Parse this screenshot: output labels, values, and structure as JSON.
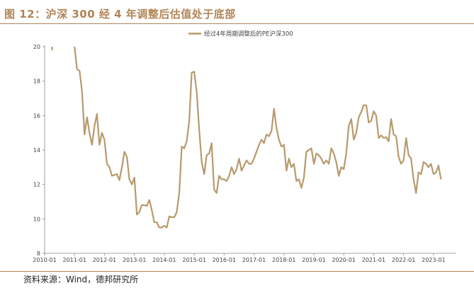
{
  "title": "图 12：沪深 300 经 4 年调整后估值处于底部",
  "source": "资料来源：Wind，德邦研究所",
  "colors": {
    "accent": "#b08457",
    "line": "#b79a6d"
  },
  "chart_data": {
    "type": "line",
    "title": "",
    "xlabel": "",
    "ylabel": "",
    "ylim": [
      8,
      20
    ],
    "yticks": [
      "8",
      "10",
      "12",
      "14",
      "16",
      "18",
      "20"
    ],
    "xticks": [
      "2010-01",
      "2011-01",
      "2012-01",
      "2013-01",
      "2014-01",
      "2015-01",
      "2016-01",
      "2017-01",
      "2018-01",
      "2019-01",
      "2020-01",
      "2021-01",
      "2022-01",
      "2023-01"
    ],
    "grid": false,
    "legend": "top-center",
    "series": [
      {
        "name": "经过4年周期调整后的PE沪深300",
        "points": [
          [
            "2010-04",
            19.8
          ],
          [
            "2010-04",
            20.0
          ],
          [
            "2011-01",
            20.0
          ],
          [
            "2011-02",
            18.7
          ],
          [
            "2011-03",
            18.6
          ],
          [
            "2011-04",
            17.4
          ],
          [
            "2011-05",
            14.9
          ],
          [
            "2011-06",
            15.9
          ],
          [
            "2011-07",
            15.0
          ],
          [
            "2011-08",
            14.3
          ],
          [
            "2011-09",
            15.4
          ],
          [
            "2011-10",
            16.1
          ],
          [
            "2011-11",
            14.3
          ],
          [
            "2011-12",
            15.0
          ],
          [
            "2012-01",
            14.6
          ],
          [
            "2012-02",
            13.2
          ],
          [
            "2012-03",
            13.0
          ],
          [
            "2012-04",
            12.5
          ],
          [
            "2012-05",
            12.55
          ],
          [
            "2012-06",
            12.6
          ],
          [
            "2012-07",
            12.25
          ],
          [
            "2012-08",
            13.0
          ],
          [
            "2012-09",
            13.9
          ],
          [
            "2012-10",
            13.6
          ],
          [
            "2012-11",
            12.3
          ],
          [
            "2012-12",
            12.0
          ],
          [
            "2013-01",
            12.4
          ],
          [
            "2013-02",
            10.25
          ],
          [
            "2013-03",
            10.4
          ],
          [
            "2013-04",
            10.8
          ],
          [
            "2013-05",
            10.8
          ],
          [
            "2013-06",
            10.75
          ],
          [
            "2013-07",
            11.1
          ],
          [
            "2013-08",
            10.5
          ],
          [
            "2013-09",
            9.8
          ],
          [
            "2013-10",
            9.8
          ],
          [
            "2013-11",
            9.5
          ],
          [
            "2013-12",
            9.5
          ],
          [
            "2014-01",
            9.6
          ],
          [
            "2014-02",
            9.5
          ],
          [
            "2014-03",
            10.15
          ],
          [
            "2014-04",
            10.1
          ],
          [
            "2014-05",
            10.1
          ],
          [
            "2014-06",
            10.4
          ],
          [
            "2014-07",
            11.5
          ],
          [
            "2014-08",
            14.2
          ],
          [
            "2014-09",
            14.1
          ],
          [
            "2014-10",
            14.5
          ],
          [
            "2014-11",
            15.7
          ],
          [
            "2014-12",
            18.5
          ],
          [
            "2015-01",
            18.55
          ],
          [
            "2015-02",
            17.4
          ],
          [
            "2015-03",
            15.2
          ],
          [
            "2015-04",
            13.3
          ],
          [
            "2015-05",
            12.6
          ],
          [
            "2015-06",
            13.7
          ],
          [
            "2015-07",
            13.8
          ],
          [
            "2015-08",
            14.4
          ],
          [
            "2015-09",
            11.7
          ],
          [
            "2015-10",
            11.5
          ],
          [
            "2015-11",
            12.5
          ],
          [
            "2015-12",
            12.3
          ],
          [
            "2016-01",
            12.3
          ],
          [
            "2016-02",
            12.2
          ],
          [
            "2016-03",
            12.5
          ],
          [
            "2016-04",
            13.0
          ],
          [
            "2016-05",
            12.6
          ],
          [
            "2016-06",
            12.9
          ],
          [
            "2016-07",
            13.5
          ],
          [
            "2016-08",
            12.8
          ],
          [
            "2016-09",
            13.1
          ],
          [
            "2016-10",
            13.4
          ],
          [
            "2016-11",
            13.2
          ],
          [
            "2016-12",
            13.2
          ],
          [
            "2017-01",
            13.5
          ],
          [
            "2017-02",
            13.9
          ],
          [
            "2017-03",
            14.3
          ],
          [
            "2017-04",
            14.6
          ],
          [
            "2017-05",
            14.4
          ],
          [
            "2017-06",
            14.9
          ],
          [
            "2017-07",
            14.8
          ],
          [
            "2017-08",
            15.1
          ],
          [
            "2017-09",
            16.4
          ],
          [
            "2017-10",
            15.3
          ],
          [
            "2017-11",
            14.6
          ],
          [
            "2017-12",
            14.2
          ],
          [
            "2018-01",
            14.3
          ],
          [
            "2018-02",
            12.8
          ],
          [
            "2018-03",
            13.5
          ],
          [
            "2018-04",
            13.0
          ],
          [
            "2018-05",
            13.2
          ],
          [
            "2018-06",
            12.2
          ],
          [
            "2018-07",
            12.3
          ],
          [
            "2018-08",
            11.8
          ],
          [
            "2018-09",
            12.4
          ],
          [
            "2018-10",
            13.9
          ],
          [
            "2018-11",
            14.0
          ],
          [
            "2018-12",
            14.1
          ],
          [
            "2019-01",
            13.2
          ],
          [
            "2019-02",
            13.8
          ],
          [
            "2019-03",
            13.7
          ],
          [
            "2019-04",
            13.5
          ],
          [
            "2019-05",
            13.2
          ],
          [
            "2019-06",
            13.4
          ],
          [
            "2019-07",
            13.2
          ],
          [
            "2019-08",
            14.1
          ],
          [
            "2019-09",
            13.8
          ],
          [
            "2019-10",
            13.3
          ],
          [
            "2019-11",
            12.5
          ],
          [
            "2019-12",
            13.0
          ],
          [
            "2020-01",
            12.9
          ],
          [
            "2020-02",
            13.8
          ],
          [
            "2020-03",
            15.4
          ],
          [
            "2020-04",
            15.8
          ],
          [
            "2020-05",
            14.6
          ],
          [
            "2020-06",
            15.0
          ],
          [
            "2020-07",
            15.9
          ],
          [
            "2020-08",
            16.2
          ],
          [
            "2020-09",
            16.6
          ],
          [
            "2020-10",
            16.6
          ],
          [
            "2020-11",
            15.6
          ],
          [
            "2020-12",
            15.7
          ],
          [
            "2021-01",
            16.25
          ],
          [
            "2021-02",
            16.0
          ],
          [
            "2021-03",
            14.7
          ],
          [
            "2021-04",
            14.85
          ],
          [
            "2021-05",
            14.7
          ],
          [
            "2021-06",
            14.75
          ],
          [
            "2021-07",
            14.5
          ],
          [
            "2021-08",
            15.8
          ],
          [
            "2021-09",
            14.9
          ],
          [
            "2021-10",
            14.8
          ],
          [
            "2021-11",
            13.6
          ],
          [
            "2021-12",
            13.2
          ],
          [
            "2022-01",
            13.4
          ],
          [
            "2022-02",
            14.7
          ],
          [
            "2022-03",
            13.7
          ],
          [
            "2022-04",
            13.5
          ],
          [
            "2022-05",
            12.3
          ],
          [
            "2022-06",
            11.5
          ],
          [
            "2022-07",
            12.7
          ],
          [
            "2022-08",
            12.6
          ],
          [
            "2022-09",
            13.3
          ],
          [
            "2022-10",
            13.2
          ],
          [
            "2022-11",
            13.0
          ],
          [
            "2022-12",
            13.2
          ],
          [
            "2023-01",
            12.6
          ],
          [
            "2023-02",
            12.7
          ],
          [
            "2023-03",
            13.1
          ],
          [
            "2023-04",
            12.3
          ]
        ]
      }
    ]
  }
}
